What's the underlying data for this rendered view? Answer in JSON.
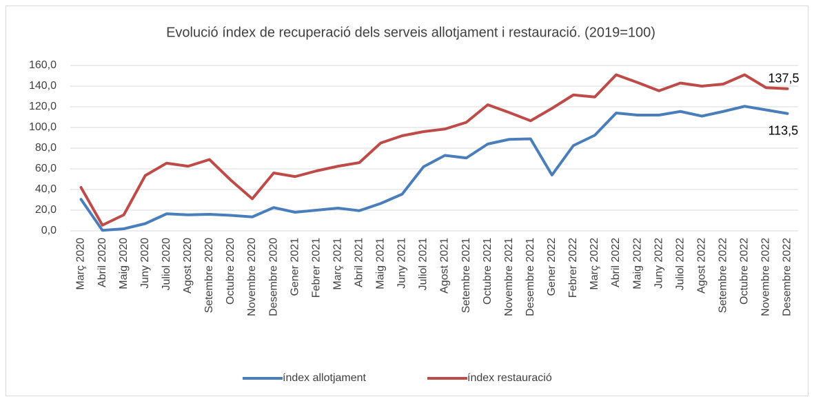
{
  "chart_data": {
    "type": "line",
    "title": "Evolució índex de recuperació dels serveis allotjament i restauració.  (2019=100)",
    "categories": [
      "Març 2020",
      "Abril 2020",
      "Maig 2020",
      "Juny 2020",
      "Juliol 2020",
      "Agost 2020",
      "Setembre 2020",
      "Octubre 2020",
      "Novembre 2020",
      "Desembre 2020",
      "Gener 2021",
      "Febrer 2021",
      "Març 2021",
      "Abril 2021",
      "Maig 2021",
      "Juny 2021",
      "Juliol 2021",
      "Agost 2021",
      "Setembre 2021",
      "Octubre 2021",
      "Novembre 2021",
      "Desembre 2021",
      "Gener 2022",
      "Febrer 2022",
      "Març 2022",
      "Abril 2022",
      "Maig 2022",
      "Juny 2022",
      "Juliol 2022",
      "Agost 2022",
      "Setembre 2022",
      "Octubre 2022",
      "Novembre 2022",
      "Desembre 2022"
    ],
    "series": [
      {
        "name": "índex allotjament",
        "color": "#4a7ebb",
        "values": [
          30.5,
          0.5,
          2,
          7,
          16.5,
          15.5,
          16,
          15,
          13.5,
          22.5,
          18,
          20,
          22,
          19.5,
          26.5,
          35.5,
          62,
          73,
          70.5,
          84,
          88.5,
          89,
          54,
          82.5,
          92.5,
          114,
          112,
          112,
          115.5,
          111,
          115.5,
          120.5,
          117,
          113.5
        ],
        "value_labels": [
          null,
          null,
          null,
          null,
          null,
          null,
          null,
          null,
          null,
          null,
          null,
          null,
          null,
          null,
          null,
          null,
          null,
          null,
          null,
          null,
          null,
          null,
          null,
          null,
          null,
          null,
          null,
          null,
          null,
          null,
          null,
          null,
          null,
          "113,5"
        ]
      },
      {
        "name": "índex restauració",
        "color": "#be4b48",
        "values": [
          42,
          5.5,
          15.5,
          53.5,
          65.5,
          62.5,
          69,
          49,
          31,
          56,
          52.5,
          58,
          62.5,
          66,
          85,
          92,
          96,
          98.5,
          105,
          122,
          114.5,
          106.5,
          118.5,
          131.5,
          129.5,
          151,
          143.5,
          135.5,
          143,
          140,
          142,
          151,
          138.5,
          137.5
        ],
        "value_labels": [
          null,
          null,
          null,
          null,
          null,
          null,
          null,
          null,
          null,
          null,
          null,
          null,
          null,
          null,
          null,
          null,
          null,
          null,
          null,
          null,
          null,
          null,
          null,
          null,
          null,
          null,
          null,
          null,
          null,
          null,
          null,
          null,
          null,
          "137,5"
        ]
      }
    ],
    "ylim": [
      0,
      160
    ],
    "yticks": [
      {
        "value": 0,
        "label": "0,0"
      },
      {
        "value": 20,
        "label": "20,0"
      },
      {
        "value": 40,
        "label": "40,0"
      },
      {
        "value": 60,
        "label": "60,0"
      },
      {
        "value": 80,
        "label": "80,0"
      },
      {
        "value": 100,
        "label": "100,0"
      },
      {
        "value": 120,
        "label": "120,0"
      },
      {
        "value": 140,
        "label": "140,0"
      },
      {
        "value": 160,
        "label": "160,0"
      }
    ],
    "grid": true,
    "legend": "bottom"
  }
}
